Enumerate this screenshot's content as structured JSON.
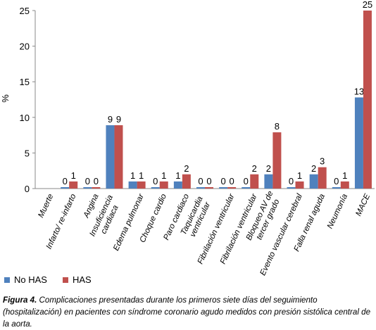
{
  "chart_data": {
    "type": "bar",
    "ylabel": "%",
    "ylim": [
      0,
      25
    ],
    "yticks": [
      0,
      5,
      10,
      15,
      20,
      25
    ],
    "categories": [
      "Muerte",
      "Infarto/ re-infarto",
      "Angina",
      "Insuficiencia|cardiaca",
      "Edema pulmonar",
      "Choque cardio",
      "Paro cardiaco",
      "Taquicardia|ventricular",
      "Fibrilación ventricular",
      "Fibrilación ventricular",
      "Bloqueo AV de|tercer grado",
      "Evento vascular cerebral",
      "Falla renal aguda",
      "Neumonía",
      "MACE"
    ],
    "series": [
      {
        "name": "No HAS",
        "color": "#4F81BD",
        "values": [
          null,
          0,
          0,
          9,
          1,
          0,
          1,
          0,
          0,
          0,
          2,
          0,
          2,
          0,
          13
        ],
        "bar_values": [
          null,
          0.2,
          0.2,
          8.9,
          1,
          0.2,
          1,
          0.2,
          0.2,
          0.2,
          2,
          0.2,
          2,
          0.2,
          12.8
        ]
      },
      {
        "name": "HAS",
        "color": "#C0504D",
        "values": [
          null,
          1,
          0,
          9,
          1,
          1,
          2,
          0,
          0,
          2,
          8,
          1,
          3,
          1,
          25
        ],
        "bar_values": [
          null,
          1,
          0.2,
          8.9,
          1,
          1,
          2,
          0.2,
          0.2,
          2,
          7.9,
          1,
          3,
          1,
          25
        ]
      }
    ],
    "legend_position": "bottom-left",
    "grid": false
  },
  "caption": {
    "label": "Figura 4.",
    "text": " Complicaciones presentadas durante los primeros siete días del seguimiento (hospitalización) en pacientes con síndrome coronario agudo medidos con presión sistólica central de la aorta."
  }
}
